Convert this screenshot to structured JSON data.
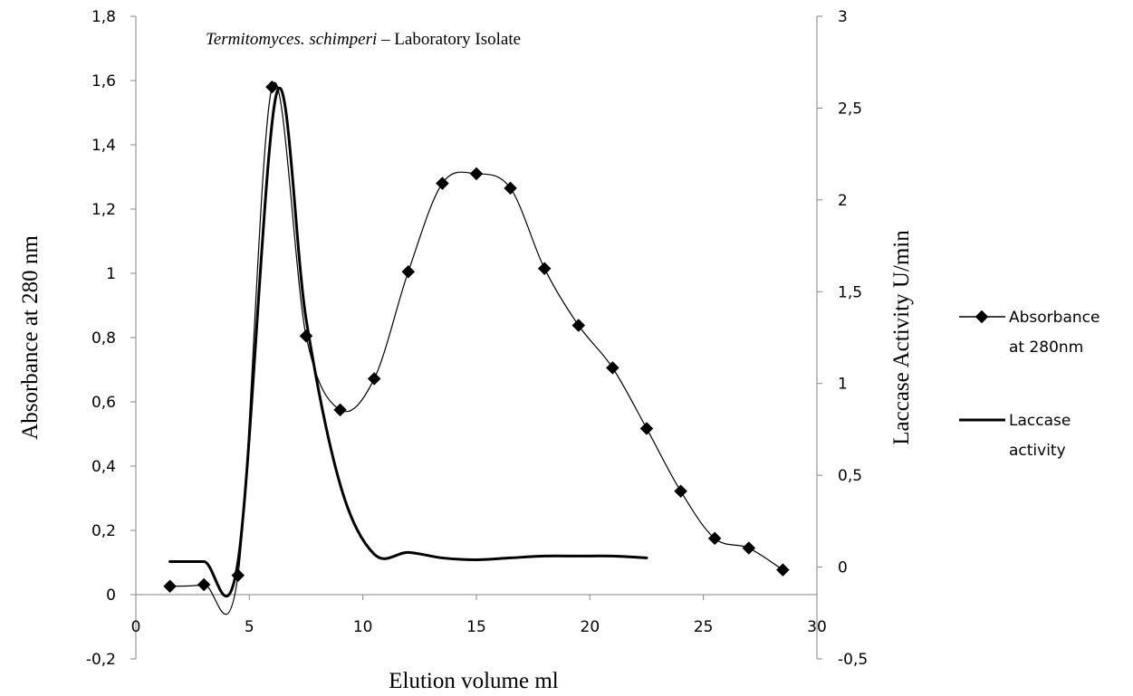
{
  "chart_data": {
    "type": "line",
    "title": {
      "italic": "Termitomyces. schimperi",
      "rest": " – Laboratory Isolate"
    },
    "xlabel": "Elution volume ml",
    "ylabel": "Absorbance at 280 nm",
    "y2label": "Laccase Activity  U/min",
    "xlim": [
      0,
      30
    ],
    "ylim": [
      -0.2,
      1.8
    ],
    "y2lim": [
      -0.5,
      3
    ],
    "x_ticks": [
      0,
      5,
      10,
      15,
      20,
      25,
      30
    ],
    "x_tick_labels": [
      "0",
      "5",
      "10",
      "15",
      "20",
      "25",
      "30"
    ],
    "y_ticks": [
      -0.2,
      0,
      0.2,
      0.4,
      0.6,
      0.8,
      1,
      1.2,
      1.4,
      1.6,
      1.8
    ],
    "y_tick_labels": [
      "-0,2",
      "0",
      "0,2",
      "0,4",
      "0,6",
      "0,8",
      "1",
      "1,2",
      "1,4",
      "1,6",
      "1,8"
    ],
    "y2_ticks": [
      -0.5,
      0,
      0.5,
      1,
      1.5,
      2,
      2.5,
      3
    ],
    "y2_tick_labels": [
      "-0,5",
      "0",
      "0,5",
      "1",
      "1,5",
      "2",
      "2,5",
      "3"
    ],
    "grid": false,
    "legend_position": "right",
    "series": [
      {
        "name": "Absorbance at 280nm",
        "axis": "left",
        "marker": "diamond",
        "color": "#000000",
        "x": [
          1.5,
          3,
          4.5,
          6,
          7.5,
          9,
          10.5,
          12,
          13.5,
          15,
          16.5,
          18,
          19.5,
          21,
          22.5,
          24,
          25.5,
          27,
          28.5
        ],
        "y": [
          0.026,
          0.031,
          0.06,
          1.58,
          0.805,
          0.575,
          0.672,
          1.005,
          1.28,
          1.31,
          1.265,
          1.015,
          0.838,
          0.706,
          0.517,
          0.322,
          0.175,
          0.145,
          0.077
        ]
      },
      {
        "name": "Laccase activity",
        "axis": "right",
        "marker": "none",
        "color": "#000000",
        "x": [
          1.5,
          3,
          4.5,
          6.2,
          7.5,
          9,
          10.5,
          12,
          13.5,
          15,
          16.5,
          18,
          19.5,
          21,
          22.5
        ],
        "y": [
          0.03,
          0.03,
          0.03,
          2.58,
          1.35,
          0.45,
          0.07,
          0.08,
          0.05,
          0.04,
          0.05,
          0.06,
          0.06,
          0.06,
          0.05
        ]
      }
    ],
    "legend": [
      {
        "lines": [
          "Absorbance",
          "at 280nm"
        ],
        "marker": "diamond"
      },
      {
        "lines": [
          "Laccase",
          "activity"
        ],
        "marker": "none"
      }
    ]
  }
}
